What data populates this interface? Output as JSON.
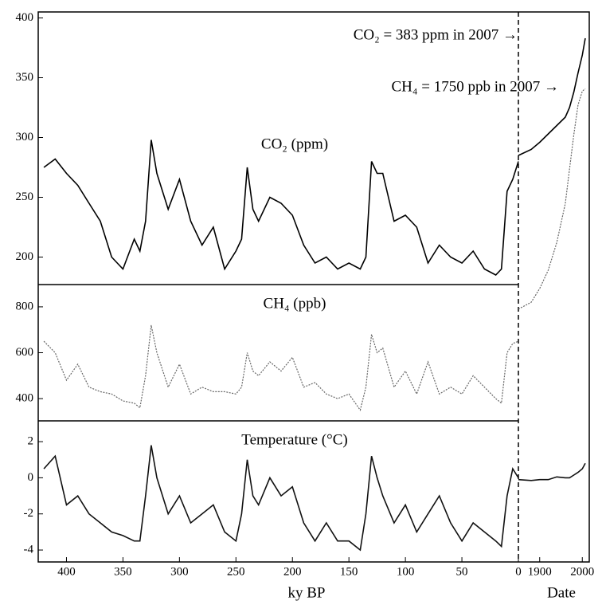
{
  "chart_data": [
    {
      "type": "line",
      "label": "CO₂ (ppm)",
      "ylim": [
        177,
        405
      ],
      "yticks": [
        200,
        250,
        300,
        350,
        400
      ],
      "annotations": [
        "CO₂ = 383 ppm in 2007 →",
        "CH₄ = 1750 ppb in 2007 →"
      ],
      "series": [
        {
          "color": "#000000",
          "x": [
            420,
            410,
            400,
            390,
            380,
            370,
            360,
            350,
            340,
            335,
            330,
            325,
            320,
            310,
            300,
            290,
            280,
            270,
            260,
            250,
            245,
            240,
            235,
            230,
            220,
            210,
            200,
            190,
            180,
            170,
            160,
            150,
            140,
            135,
            130,
            125,
            120,
            110,
            100,
            90,
            80,
            70,
            60,
            50,
            40,
            30,
            20,
            15,
            10,
            5,
            0
          ],
          "values": [
            275,
            282,
            270,
            260,
            245,
            230,
            200,
            190,
            215,
            205,
            230,
            298,
            270,
            240,
            265,
            230,
            210,
            225,
            190,
            205,
            215,
            275,
            240,
            230,
            250,
            245,
            235,
            210,
            195,
            200,
            190,
            195,
            190,
            200,
            280,
            270,
            270,
            230,
            235,
            225,
            195,
            210,
            200,
            195,
            205,
            190,
            185,
            190,
            255,
            265,
            280
          ]
        },
        {
          "color": "#000000",
          "axis": "x2",
          "x": [
            1850,
            1880,
            1900,
            1920,
            1940,
            1960,
            1970,
            1980,
            1990,
            2000,
            2007
          ],
          "values": [
            285,
            290,
            296,
            303,
            310,
            317,
            325,
            338,
            354,
            369,
            383
          ]
        }
      ]
    },
    {
      "type": "line",
      "label": "CH₄ (ppb)",
      "ylim": [
        303,
        897
      ],
      "yticks": [
        400,
        600,
        800
      ],
      "series": [
        {
          "color": "#666666",
          "x": [
            420,
            410,
            400,
            390,
            380,
            370,
            360,
            350,
            340,
            335,
            330,
            325,
            320,
            310,
            300,
            290,
            280,
            270,
            260,
            250,
            245,
            240,
            235,
            230,
            220,
            210,
            200,
            190,
            180,
            170,
            160,
            150,
            140,
            135,
            130,
            125,
            120,
            110,
            100,
            90,
            80,
            70,
            60,
            50,
            40,
            30,
            20,
            15,
            10,
            5,
            0
          ],
          "values": [
            650,
            600,
            480,
            550,
            450,
            430,
            420,
            390,
            380,
            360,
            500,
            720,
            600,
            450,
            550,
            420,
            450,
            430,
            430,
            420,
            450,
            600,
            520,
            500,
            560,
            520,
            580,
            450,
            470,
            420,
            400,
            420,
            350,
            450,
            680,
            600,
            620,
            450,
            520,
            420,
            560,
            420,
            450,
            420,
            500,
            450,
            400,
            380,
            600,
            640,
            650
          ]
        },
        {
          "color": "#666666",
          "axis": "x2",
          "x": [
            1850,
            1880,
            1900,
            1920,
            1940,
            1960,
            1970,
            1980,
            1990,
            2000,
            2007
          ],
          "values": [
            790,
            820,
            880,
            960,
            1080,
            1250,
            1400,
            1550,
            1680,
            1740,
            1750
          ]
        }
      ]
    },
    {
      "type": "line",
      "label": "Temperature (°C)",
      "ylim": [
        -4.66,
        3.15
      ],
      "yticks": [
        -4,
        -2,
        0,
        2
      ],
      "xlim": [
        425,
        0
      ],
      "xticks": [
        400,
        350,
        300,
        250,
        200,
        150,
        100,
        50,
        0
      ],
      "xlabel": "ky BP",
      "x2lim": [
        1850,
        2007
      ],
      "x2ticks": [
        1900,
        2000
      ],
      "x2label": "Date",
      "series": [
        {
          "color": "#111111",
          "x": [
            420,
            410,
            400,
            390,
            380,
            370,
            360,
            350,
            340,
            335,
            330,
            325,
            320,
            310,
            300,
            290,
            280,
            270,
            260,
            250,
            245,
            240,
            235,
            230,
            220,
            210,
            200,
            190,
            180,
            170,
            160,
            150,
            140,
            135,
            130,
            125,
            120,
            110,
            100,
            90,
            80,
            70,
            60,
            50,
            40,
            30,
            20,
            15,
            10,
            5,
            0
          ],
          "values": [
            0.5,
            1.2,
            -1.5,
            -1,
            -2,
            -2.5,
            -3,
            -3.2,
            -3.5,
            -3.5,
            -1,
            1.8,
            0,
            -2,
            -1,
            -2.5,
            -2,
            -1.5,
            -3,
            -3.5,
            -2,
            1,
            -1,
            -1.5,
            0,
            -1,
            -0.5,
            -2.5,
            -3.5,
            -2.5,
            -3.5,
            -3.5,
            -4,
            -2,
            1.2,
            0,
            -1,
            -2.5,
            -1.5,
            -3,
            -2,
            -1,
            -2.5,
            -3.5,
            -2.5,
            -3,
            -3.5,
            -3.8,
            -1,
            0.5,
            0
          ]
        },
        {
          "color": "#111111",
          "axis": "x2",
          "x": [
            1850,
            1880,
            1900,
            1920,
            1940,
            1960,
            1970,
            1980,
            1990,
            2000,
            2007
          ],
          "values": [
            -0.1,
            -0.15,
            -0.1,
            -0.1,
            0.05,
            0,
            0,
            0.15,
            0.3,
            0.5,
            0.8
          ]
        }
      ]
    }
  ]
}
